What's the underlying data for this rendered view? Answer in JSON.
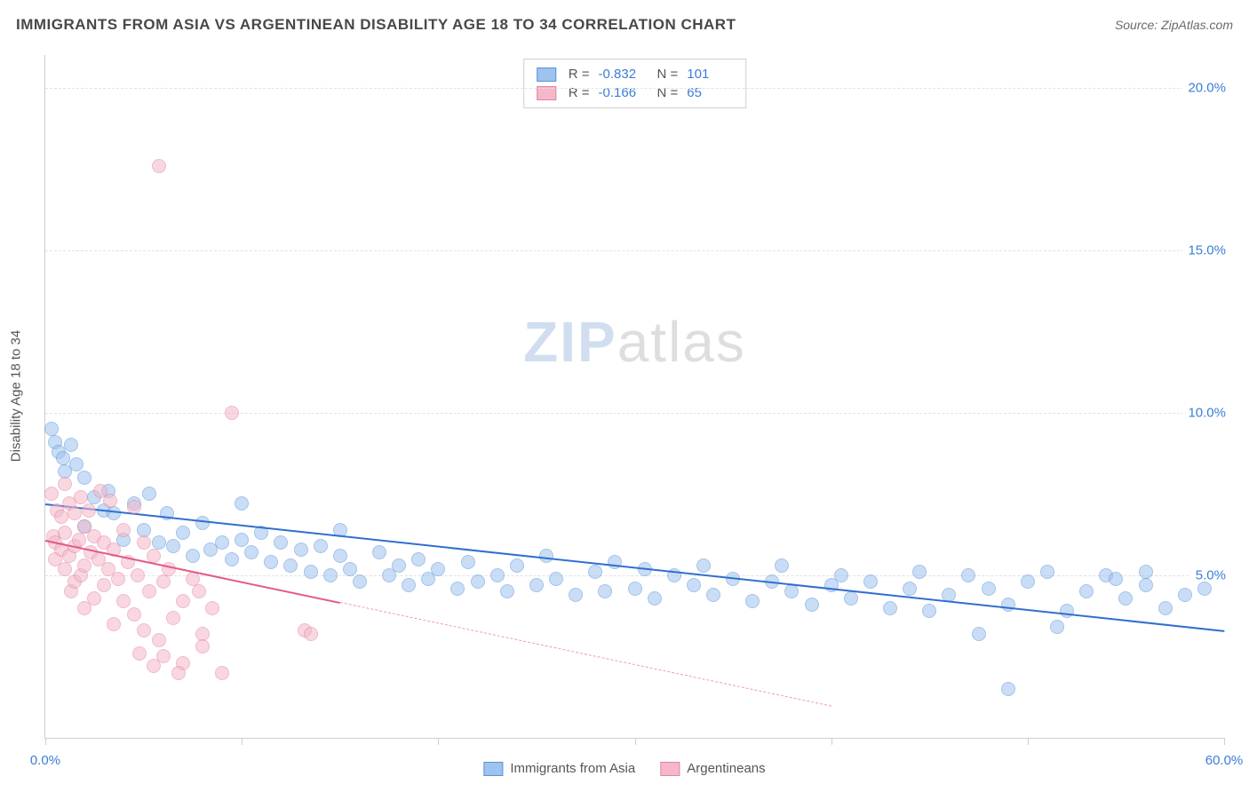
{
  "header": {
    "title": "IMMIGRANTS FROM ASIA VS ARGENTINEAN DISABILITY AGE 18 TO 34 CORRELATION CHART",
    "source": "Source: ZipAtlas.com"
  },
  "ylabel": "Disability Age 18 to 34",
  "watermark": {
    "part1": "ZIP",
    "part2": "atlas"
  },
  "chart": {
    "type": "scatter",
    "xlim": [
      0,
      60
    ],
    "ylim": [
      0,
      21
    ],
    "xticks": [
      0,
      10,
      20,
      30,
      40,
      50,
      60
    ],
    "xtick_labels": [
      "0.0%",
      "",
      "",
      "",
      "",
      "",
      "60.0%"
    ],
    "yticks": [
      5,
      10,
      15,
      20
    ],
    "ytick_labels": [
      "5.0%",
      "10.0%",
      "15.0%",
      "20.0%"
    ],
    "background_color": "#ffffff",
    "grid_color": "#e2e2e2",
    "axis_color": "#cfcfcf",
    "marker_radius": 8,
    "marker_opacity": 0.55,
    "series": [
      {
        "name": "Immigrants from Asia",
        "color_fill": "#9ec3ef",
        "color_stroke": "#5a93d6",
        "trend_color": "#2f6fd0",
        "trend_width": 2.5,
        "trend": {
          "x1": 0,
          "y1": 7.2,
          "x2": 60,
          "y2": 3.3,
          "dash_after_x": 60
        },
        "r_label": "R =",
        "r_value": "-0.832",
        "n_label": "N =",
        "n_value": "101",
        "points": [
          [
            0.3,
            9.5
          ],
          [
            0.5,
            9.1
          ],
          [
            0.7,
            8.8
          ],
          [
            0.9,
            8.6
          ],
          [
            1.0,
            8.2
          ],
          [
            1.3,
            9.0
          ],
          [
            1.6,
            8.4
          ],
          [
            2.0,
            8.0
          ],
          [
            2.0,
            6.5
          ],
          [
            2.5,
            7.4
          ],
          [
            3.0,
            7.0
          ],
          [
            3.2,
            7.6
          ],
          [
            3.5,
            6.9
          ],
          [
            4.0,
            6.1
          ],
          [
            4.5,
            7.2
          ],
          [
            5.0,
            6.4
          ],
          [
            5.3,
            7.5
          ],
          [
            5.8,
            6.0
          ],
          [
            6.2,
            6.9
          ],
          [
            6.5,
            5.9
          ],
          [
            7.0,
            6.3
          ],
          [
            7.5,
            5.6
          ],
          [
            8.0,
            6.6
          ],
          [
            8.4,
            5.8
          ],
          [
            9.0,
            6.0
          ],
          [
            9.5,
            5.5
          ],
          [
            10.0,
            6.1
          ],
          [
            10.0,
            7.2
          ],
          [
            10.5,
            5.7
          ],
          [
            11.0,
            6.3
          ],
          [
            11.5,
            5.4
          ],
          [
            12.0,
            6.0
          ],
          [
            12.5,
            5.3
          ],
          [
            13.0,
            5.8
          ],
          [
            13.5,
            5.1
          ],
          [
            14.0,
            5.9
          ],
          [
            14.5,
            5.0
          ],
          [
            15.0,
            5.6
          ],
          [
            15.0,
            6.4
          ],
          [
            15.5,
            5.2
          ],
          [
            16.0,
            4.8
          ],
          [
            17.0,
            5.7
          ],
          [
            17.5,
            5.0
          ],
          [
            18.0,
            5.3
          ],
          [
            18.5,
            4.7
          ],
          [
            19.0,
            5.5
          ],
          [
            19.5,
            4.9
          ],
          [
            20.0,
            5.2
          ],
          [
            21.0,
            4.6
          ],
          [
            21.5,
            5.4
          ],
          [
            22.0,
            4.8
          ],
          [
            23.0,
            5.0
          ],
          [
            23.5,
            4.5
          ],
          [
            24.0,
            5.3
          ],
          [
            25.0,
            4.7
          ],
          [
            25.5,
            5.6
          ],
          [
            26.0,
            4.9
          ],
          [
            27.0,
            4.4
          ],
          [
            28.0,
            5.1
          ],
          [
            28.5,
            4.5
          ],
          [
            29.0,
            5.4
          ],
          [
            30.0,
            4.6
          ],
          [
            30.5,
            5.2
          ],
          [
            31.0,
            4.3
          ],
          [
            32.0,
            5.0
          ],
          [
            33.0,
            4.7
          ],
          [
            33.5,
            5.3
          ],
          [
            34.0,
            4.4
          ],
          [
            35.0,
            4.9
          ],
          [
            36.0,
            4.2
          ],
          [
            37.0,
            4.8
          ],
          [
            37.5,
            5.3
          ],
          [
            38.0,
            4.5
          ],
          [
            39.0,
            4.1
          ],
          [
            40.0,
            4.7
          ],
          [
            40.5,
            5.0
          ],
          [
            41.0,
            4.3
          ],
          [
            42.0,
            4.8
          ],
          [
            43.0,
            4.0
          ],
          [
            44.0,
            4.6
          ],
          [
            44.5,
            5.1
          ],
          [
            45.0,
            3.9
          ],
          [
            46.0,
            4.4
          ],
          [
            47.0,
            5.0
          ],
          [
            47.5,
            3.2
          ],
          [
            48.0,
            4.6
          ],
          [
            49.0,
            4.1
          ],
          [
            50.0,
            4.8
          ],
          [
            51.0,
            5.1
          ],
          [
            52.0,
            3.9
          ],
          [
            53.0,
            4.5
          ],
          [
            54.0,
            5.0
          ],
          [
            55.0,
            4.3
          ],
          [
            56.0,
            4.7
          ],
          [
            57.0,
            4.0
          ],
          [
            49.0,
            1.5
          ],
          [
            51.5,
            3.4
          ],
          [
            54.5,
            4.9
          ],
          [
            56.0,
            5.1
          ],
          [
            58.0,
            4.4
          ],
          [
            59.0,
            4.6
          ]
        ]
      },
      {
        "name": "Argentineans",
        "color_fill": "#f4b8c8",
        "color_stroke": "#e583a2",
        "trend_color": "#e35a87",
        "trend_width": 2.5,
        "trend": {
          "x1": 0,
          "y1": 6.1,
          "x2": 40,
          "y2": 1.0,
          "dash_after_x": 15
        },
        "r_label": "R =",
        "r_value": "-0.166",
        "n_label": "N =",
        "n_value": "65",
        "points": [
          [
            0.3,
            7.5
          ],
          [
            0.4,
            6.2
          ],
          [
            0.5,
            6.0
          ],
          [
            0.5,
            5.5
          ],
          [
            0.6,
            7.0
          ],
          [
            0.8,
            6.8
          ],
          [
            0.8,
            5.8
          ],
          [
            1.0,
            7.8
          ],
          [
            1.0,
            6.3
          ],
          [
            1.0,
            5.2
          ],
          [
            1.2,
            7.2
          ],
          [
            1.2,
            5.6
          ],
          [
            1.3,
            4.5
          ],
          [
            1.5,
            6.9
          ],
          [
            1.5,
            5.9
          ],
          [
            1.5,
            4.8
          ],
          [
            1.7,
            6.1
          ],
          [
            1.8,
            7.4
          ],
          [
            1.8,
            5.0
          ],
          [
            2.0,
            6.5
          ],
          [
            2.0,
            5.3
          ],
          [
            2.0,
            4.0
          ],
          [
            2.2,
            7.0
          ],
          [
            2.3,
            5.7
          ],
          [
            2.5,
            6.2
          ],
          [
            2.5,
            4.3
          ],
          [
            2.7,
            5.5
          ],
          [
            2.8,
            7.6
          ],
          [
            3.0,
            6.0
          ],
          [
            3.0,
            4.7
          ],
          [
            3.2,
            5.2
          ],
          [
            3.3,
            7.3
          ],
          [
            3.5,
            5.8
          ],
          [
            3.5,
            3.5
          ],
          [
            3.7,
            4.9
          ],
          [
            4.0,
            6.4
          ],
          [
            4.0,
            4.2
          ],
          [
            4.2,
            5.4
          ],
          [
            4.5,
            7.1
          ],
          [
            4.5,
            3.8
          ],
          [
            4.7,
            5.0
          ],
          [
            5.0,
            6.0
          ],
          [
            5.0,
            3.3
          ],
          [
            5.3,
            4.5
          ],
          [
            5.5,
            5.6
          ],
          [
            5.8,
            3.0
          ],
          [
            6.0,
            4.8
          ],
          [
            6.0,
            2.5
          ],
          [
            6.3,
            5.2
          ],
          [
            6.5,
            3.7
          ],
          [
            7.0,
            4.2
          ],
          [
            7.0,
            2.3
          ],
          [
            7.5,
            4.9
          ],
          [
            8.0,
            3.2
          ],
          [
            8.0,
            2.8
          ],
          [
            8.5,
            4.0
          ],
          [
            9.0,
            2.0
          ],
          [
            9.5,
            10.0
          ],
          [
            13.2,
            3.3
          ],
          [
            13.5,
            3.2
          ],
          [
            5.8,
            17.6
          ],
          [
            4.8,
            2.6
          ],
          [
            5.5,
            2.2
          ],
          [
            6.8,
            2.0
          ],
          [
            7.8,
            4.5
          ]
        ]
      }
    ]
  },
  "bottom_legend": [
    {
      "label": "Immigrants from Asia",
      "fill": "#9ec3ef",
      "stroke": "#5a93d6"
    },
    {
      "label": "Argentineans",
      "fill": "#f4b8c8",
      "stroke": "#e583a2"
    }
  ]
}
